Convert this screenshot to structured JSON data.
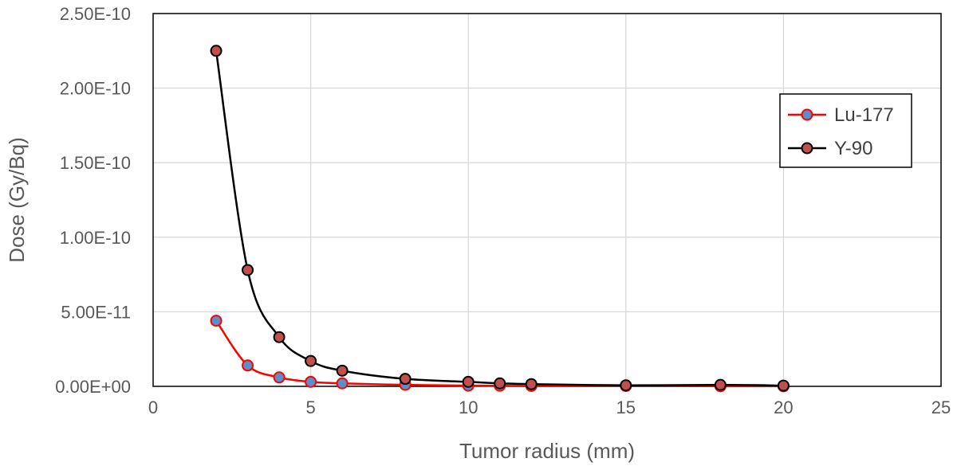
{
  "chart_data": {
    "type": "line",
    "xlabel": "Tumor radius (mm)",
    "ylabel": "Dose (Gy/Bq)",
    "xlim": [
      0,
      25
    ],
    "ylim": [
      0,
      2.5e-10
    ],
    "x_ticks": [
      0,
      5,
      10,
      15,
      20,
      25
    ],
    "x_tick_labels": [
      "0",
      "5",
      "10",
      "15",
      "20",
      "25"
    ],
    "y_ticks": [
      0,
      5e-11,
      1e-10,
      1.5e-10,
      2e-10,
      2.5e-10
    ],
    "y_tick_labels": [
      "0.00E+00",
      "5.00E-11",
      "1.00E-10",
      "1.50E-10",
      "2.00E-10",
      "2.50E-10"
    ],
    "grid": true,
    "legend_position": "right",
    "x": [
      2,
      3,
      4,
      5,
      6,
      8,
      10,
      11,
      12,
      15,
      18,
      20
    ],
    "series": [
      {
        "name": "Lu-177",
        "line_color": "#ff0000",
        "marker_fill": "#5b8fc9",
        "marker_edge": "#ff0000",
        "values": [
          4.4e-11,
          1.4e-11,
          6e-12,
          3e-12,
          2e-12,
          1e-12,
          5e-13,
          4e-13,
          3e-13,
          2e-13,
          1e-13,
          5e-14
        ]
      },
      {
        "name": "Y-90",
        "line_color": "#000000",
        "marker_fill": "#c0504d",
        "marker_edge": "#000000",
        "values": [
          2.25e-10,
          7.8e-11,
          3.3e-11,
          1.7e-11,
          1.05e-11,
          5e-12,
          3e-12,
          2e-12,
          1.5e-12,
          7e-13,
          1e-12,
          5e-13
        ]
      }
    ]
  }
}
